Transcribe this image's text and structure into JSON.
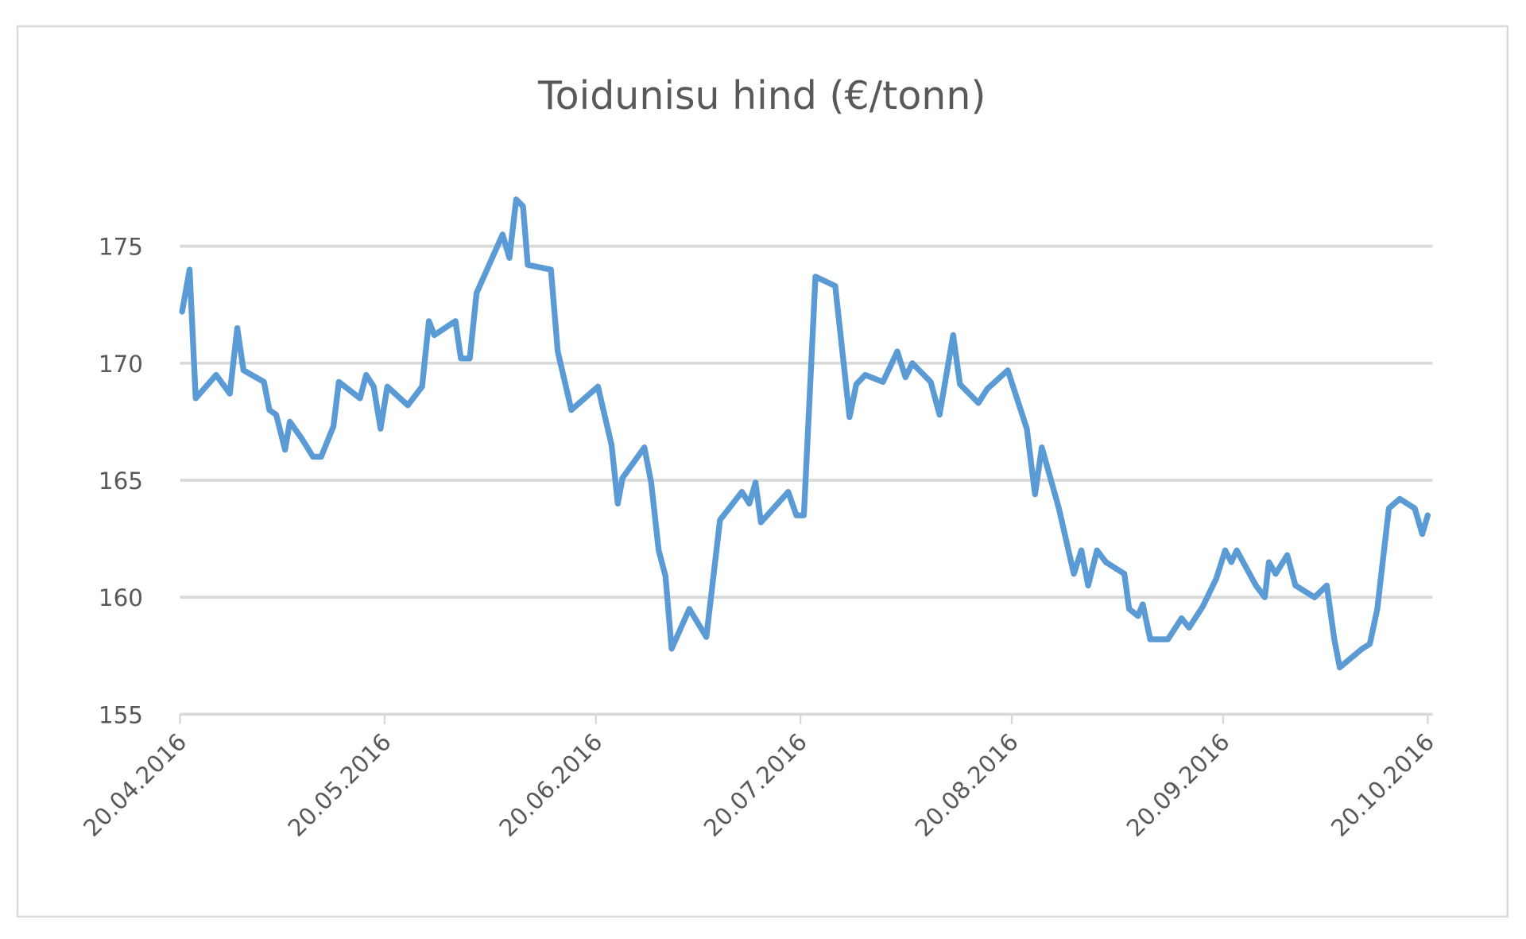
{
  "chart_data": {
    "type": "line",
    "title": "Toidunisu hind (€/tonn)",
    "xlabel": "",
    "ylabel": "",
    "ylim": [
      155,
      175
    ],
    "yticks": [
      155,
      160,
      165,
      170,
      175
    ],
    "x_tick_labels": [
      "20.04.2016",
      "20.05.2016",
      "20.06.2016",
      "20.07.2016",
      "20.08.2016",
      "20.09.2016",
      "20.10.2016"
    ],
    "x_tick_days": [
      0,
      30,
      61,
      91,
      122,
      153,
      183
    ],
    "grid": true,
    "legend": null,
    "line_color": "#5B9BD5",
    "series": [
      {
        "name": "Toidunisu hind",
        "x_days": [
          0.3,
          1.4,
          2.3,
          5.3,
          7.3,
          8.4,
          9.3,
          12.3,
          13.1,
          14.1,
          15.4,
          16.1,
          17.8,
          19.5,
          20.7,
          22.5,
          23.3,
          26.4,
          27.3,
          28.4,
          29.4,
          30.4,
          33.4,
          35.5,
          36.5,
          37.3,
          40.4,
          41.2,
          42.5,
          43.5,
          47.3,
          48.3,
          49.3,
          50.3,
          51.0,
          54.4,
          55.4,
          57.4,
          61.3,
          63.3,
          64.2,
          64.9,
          68.1,
          69.1,
          70.2,
          71.2,
          72.1,
          74.7,
          77.2,
          79.2,
          82.4,
          83.5,
          84.4,
          85.2,
          89.2,
          90.4,
          91.5,
          93.2,
          96.1,
          98.2,
          99.2,
          100.5,
          103.1,
          105.2,
          106.4,
          107.4,
          110.1,
          111.4,
          113.4,
          114.4,
          117.1,
          118.4,
          121.4,
          124.2,
          125.4,
          126.4,
          128.9,
          131.1,
          132.2,
          133.2,
          134.5,
          135.8,
          138.5,
          139.2,
          140.5,
          141.2,
          142.3,
          144.9,
          146.9,
          148.0,
          150.0,
          152.0,
          153.3,
          154.2,
          155.0,
          157.8,
          159.1,
          159.7,
          160.7,
          162.4,
          163.6,
          166.4,
          168.2,
          169.3,
          170.1,
          173.4,
          174.5,
          175.6,
          177.3,
          178.9,
          181.1,
          182.2,
          183.0,
          184.1
        ],
        "values": [
          172.2,
          174.0,
          168.5,
          169.5,
          168.7,
          171.5,
          169.7,
          169.2,
          168.0,
          167.8,
          166.3,
          167.5,
          166.8,
          166.0,
          166.0,
          167.3,
          169.2,
          168.5,
          169.5,
          169.0,
          167.2,
          169.0,
          168.2,
          169.0,
          171.8,
          171.2,
          171.8,
          170.2,
          170.2,
          173.0,
          175.5,
          174.5,
          177.0,
          176.7,
          174.2,
          174.0,
          170.5,
          168.0,
          169.0,
          166.5,
          164.0,
          165.1,
          166.4,
          164.9,
          162.0,
          160.9,
          157.8,
          159.5,
          158.3,
          163.3,
          164.5,
          164.0,
          164.9,
          163.2,
          164.5,
          163.5,
          163.5,
          173.7,
          173.3,
          167.7,
          169.1,
          169.5,
          169.2,
          170.5,
          169.4,
          170.0,
          169.2,
          167.8,
          171.2,
          169.1,
          168.3,
          168.9,
          169.7,
          167.2,
          164.4,
          166.4,
          163.8,
          161.0,
          162.0,
          160.5,
          162.0,
          161.5,
          161.0,
          159.5,
          159.2,
          159.7,
          158.2,
          158.2,
          159.1,
          158.7,
          159.6,
          160.8,
          162.0,
          161.5,
          162.0,
          160.5,
          160.0,
          161.5,
          161.0,
          161.8,
          160.5,
          160.0,
          160.5,
          158.2,
          157.0,
          157.8,
          158.0,
          159.5,
          163.8,
          164.2,
          163.8,
          162.7,
          163.5
        ]
      }
    ]
  }
}
